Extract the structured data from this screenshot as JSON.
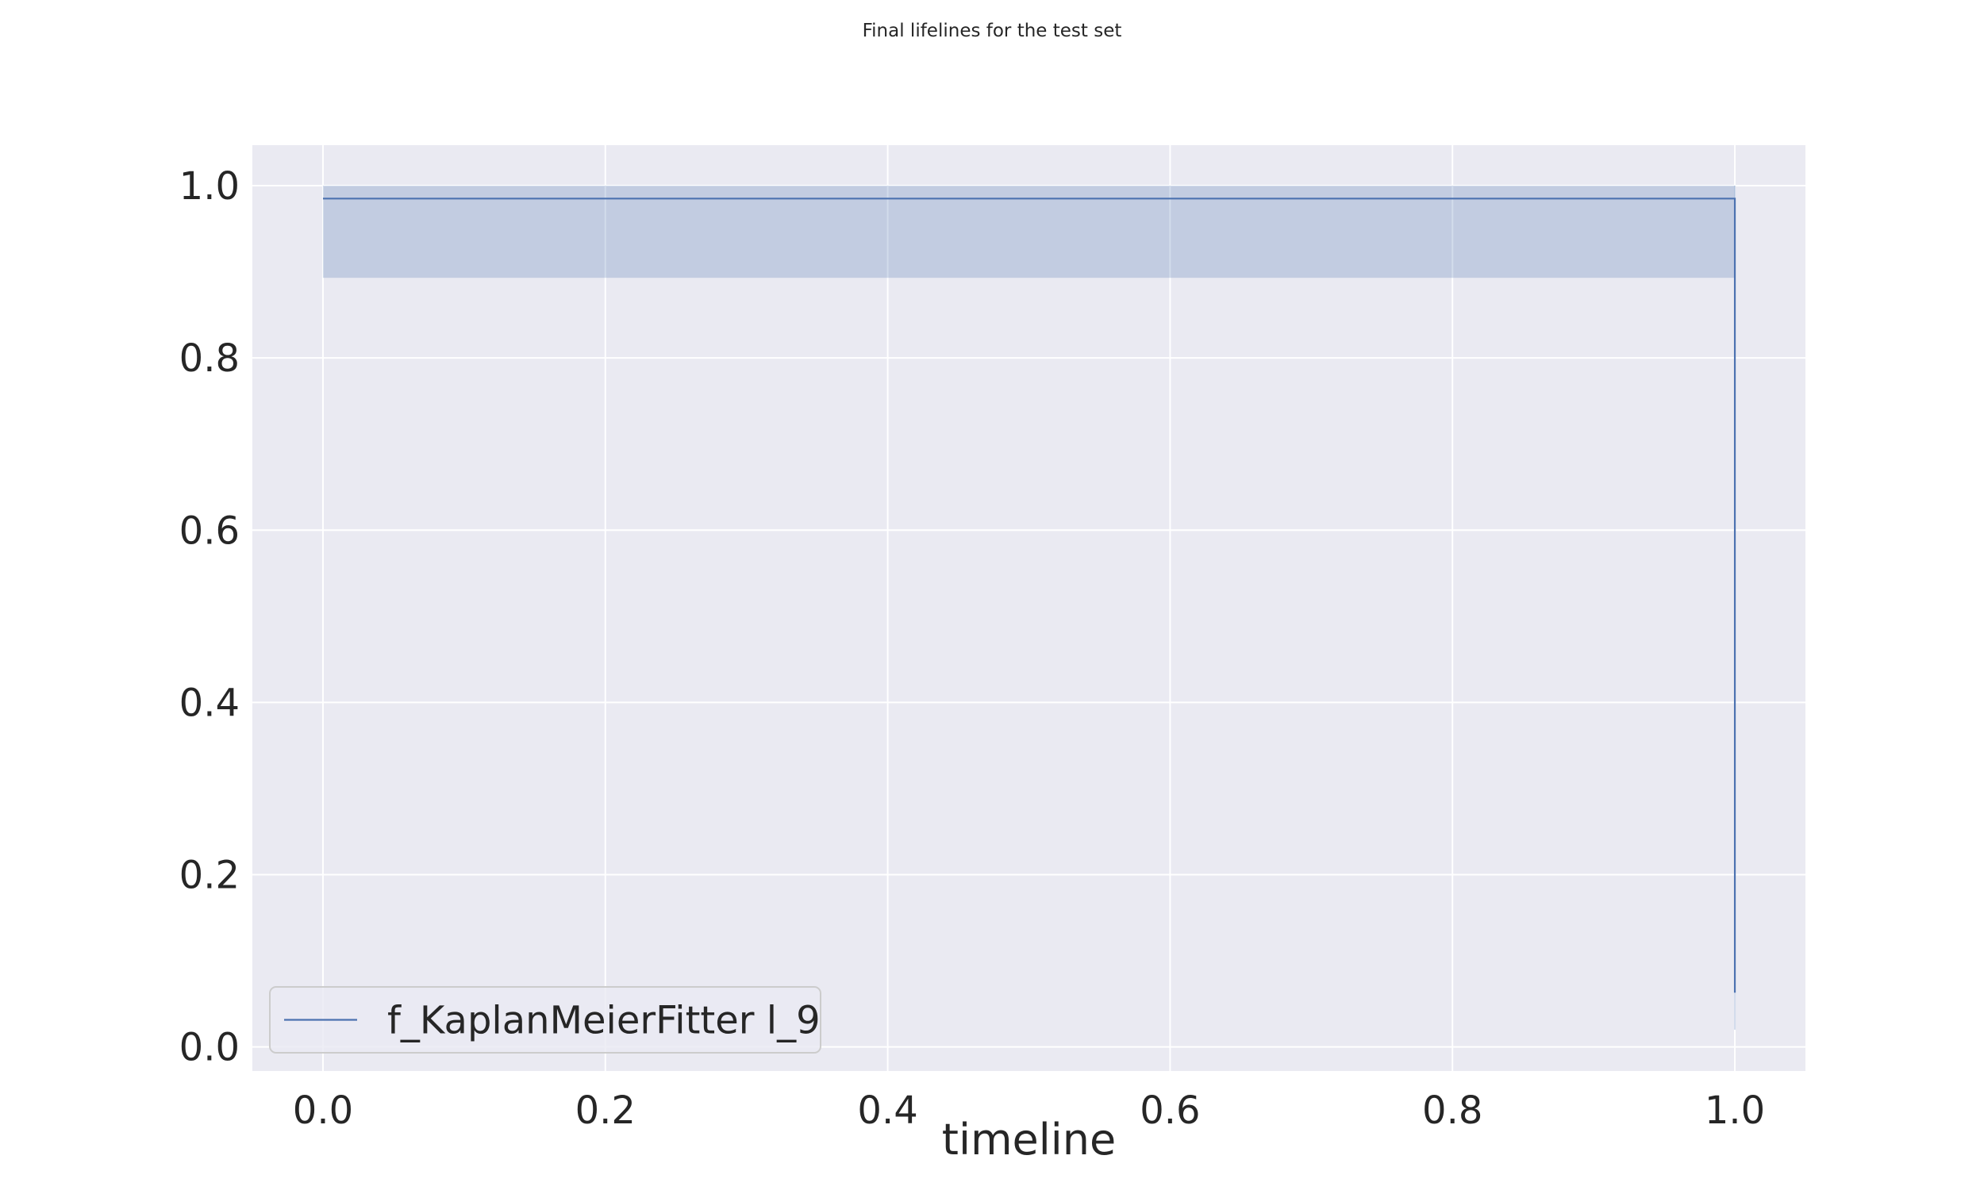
{
  "chart_data": {
    "type": "line",
    "title": "Final lifelines for the test set",
    "xlabel": "timeline",
    "ylabel": "",
    "xlim": [
      -0.05,
      1.05
    ],
    "ylim": [
      -0.028,
      1.047
    ],
    "xticks": [
      0.0,
      0.2,
      0.4,
      0.6,
      0.8,
      1.0
    ],
    "xtick_labels": [
      "0.0",
      "0.2",
      "0.4",
      "0.6",
      "0.8",
      "1.0"
    ],
    "yticks": [
      0.0,
      0.2,
      0.4,
      0.6,
      0.8,
      1.0
    ],
    "ytick_labels": [
      "0.0",
      "0.2",
      "0.4",
      "0.6",
      "0.8",
      "1.0"
    ],
    "grid": true,
    "legend_position": "lower-left",
    "series": [
      {
        "name": "f_KaplanMeierFitter l_9",
        "color": "#4c72b0",
        "drawstyle": "steps-post",
        "x": [
          0.0,
          1.0,
          1.0
        ],
        "y": [
          0.985,
          0.985,
          0.063
        ],
        "ci": {
          "x": [
            0.0,
            1.0,
            1.0
          ],
          "lower": [
            0.893,
            0.893,
            0.02
          ],
          "upper": [
            1.0,
            1.0,
            1.0
          ]
        }
      }
    ]
  },
  "colors": {
    "plot_background": "#eaeaf2",
    "grid": "#ffffff",
    "line": "#4c72b0",
    "ci_fill": "#4c72b0"
  }
}
